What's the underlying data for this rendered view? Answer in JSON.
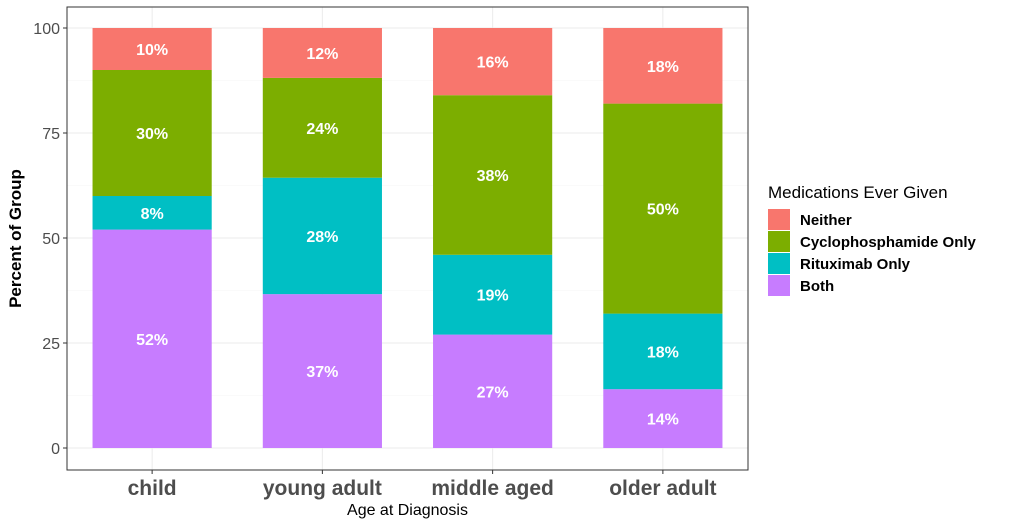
{
  "chart_data": {
    "type": "bar",
    "stacked": true,
    "xlabel": "Age at Diagnosis",
    "ylabel": "Percent of Group",
    "ylim": [
      0,
      100
    ],
    "yticks": [
      "0",
      "25",
      "50",
      "75",
      "100"
    ],
    "grid": true,
    "legend_position": "right",
    "categories": [
      "child",
      "young adult",
      "middle aged",
      "older adult"
    ],
    "legend": {
      "title": "Medications Ever Given",
      "entries": [
        "Neither",
        "Cyclophosphamide Only",
        "Rituximab Only",
        "Both"
      ]
    },
    "series": [
      {
        "name": "Both",
        "color": "#C77CFF",
        "values": [
          52,
          37,
          27,
          14
        ],
        "labels": [
          "52%",
          "37%",
          "27%",
          "14%"
        ]
      },
      {
        "name": "Rituximab Only",
        "color": "#00BFC4",
        "values": [
          8,
          28,
          19,
          18
        ],
        "labels": [
          "8%",
          "28%",
          "19%",
          "18%"
        ]
      },
      {
        "name": "Cyclophosphamide Only",
        "color": "#7CAE00",
        "values": [
          30,
          24,
          38,
          50
        ],
        "labels": [
          "30%",
          "24%",
          "38%",
          "50%"
        ]
      },
      {
        "name": "Neither",
        "color": "#F8766D",
        "values": [
          10,
          12,
          16,
          18
        ],
        "labels": [
          "10%",
          "12%",
          "16%",
          "18%"
        ]
      }
    ]
  }
}
